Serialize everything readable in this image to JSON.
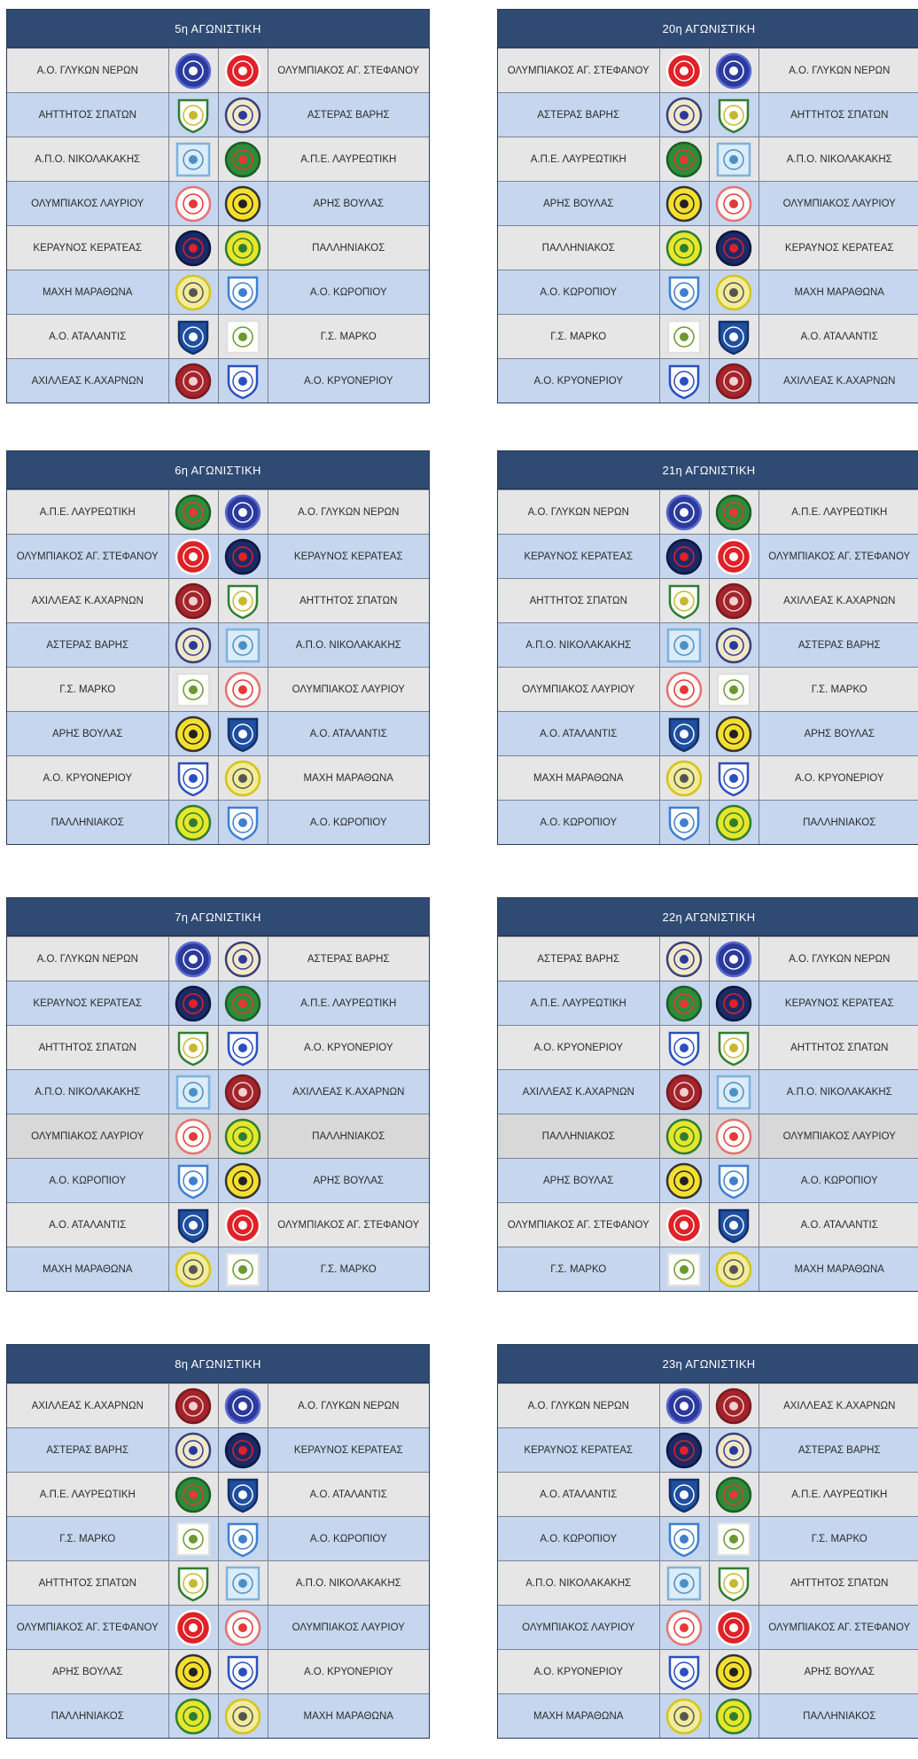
{
  "teams": {
    "glykon": {
      "name": "Α.Ο. ΓΛΥΚΩΝ ΝΕΡΩΝ",
      "icon": "glykon-nerwn-crest-icon",
      "shape": "circle",
      "bg": "#2b3a9c",
      "ring": "#5a6ad0",
      "mark": "#ffffff"
    },
    "olyst": {
      "name": "ΟΛΥΜΠΙΑΚΟΣ ΑΓ. ΣΤΕΦΑΝΟΥ",
      "icon": "olympiakos-ag-stefanou-crest-icon",
      "shape": "circle",
      "bg": "#e02127",
      "ring": "#ffffff",
      "mark": "#ffffff"
    },
    "aittitos": {
      "name": "ΑΗΤΤΗΤΟΣ ΣΠΑΤΩΝ",
      "icon": "aittitos-spatwn-crest-icon",
      "shape": "shield",
      "bg": "#ffffff",
      "ring": "#2e7d32",
      "mark": "#c8b830"
    },
    "asteras": {
      "name": "ΑΣΤΕΡΑΣ ΒΑΡΗΣ",
      "icon": "asteras-varis-crest-icon",
      "shape": "circle",
      "bg": "#f1e8c8",
      "ring": "#3a3f7a",
      "mark": "#2b3a9c"
    },
    "apo_nik": {
      "name": "Α.Π.Ο. ΝΙΚΟΛΑΚΑΚΗΣ",
      "icon": "apo-nikolakakis-crest-icon",
      "shape": "square",
      "bg": "#dcecf8",
      "ring": "#7fb2dd",
      "mark": "#4a90c8"
    },
    "ape_lavr": {
      "name": "Α.Π.Ε. ΛΑΥΡΕΩΤΙΚΗ",
      "icon": "ape-lavreotiki-crest-icon",
      "shape": "circle",
      "bg": "#2e8b3a",
      "ring": "#1c5e24",
      "mark": "#e53935"
    },
    "oly_lavr": {
      "name": "ΟΛΥΜΠΙΑΚΟΣ ΛΑΥΡΙΟΥ",
      "icon": "olympiakos-lavriou-crest-icon",
      "shape": "circle",
      "bg": "#ffffff",
      "ring": "#e57373",
      "mark": "#e53935"
    },
    "aris": {
      "name": "ΑΡΗΣ ΒΟΥΛΑΣ",
      "icon": "aris-voulas-crest-icon",
      "shape": "circle",
      "bg": "#f5df2e",
      "ring": "#333333",
      "mark": "#222222"
    },
    "keravnos": {
      "name": "ΚΕΡΑΥΝΟΣ ΚΕΡΑΤΕΑΣ",
      "icon": "keravnos-keratea-crest-icon",
      "shape": "circle",
      "bg": "#1a2a66",
      "ring": "#0f1840",
      "mark": "#e02127"
    },
    "pallini": {
      "name": "ΠΑΛΛΗΝΙΑΚΟΣ",
      "icon": "palliniakos-crest-icon",
      "shape": "circle",
      "bg": "#e6e62a",
      "ring": "#2e7d32",
      "mark": "#2e7d32"
    },
    "maxi": {
      "name": "ΜΑΧΗ ΜΑΡΑΘΩΝΑ",
      "icon": "maxi-marathona-crest-icon",
      "shape": "circle",
      "bg": "#f2ec9a",
      "ring": "#d4c41a",
      "mark": "#555555"
    },
    "korop": {
      "name": "Α.Ο. ΚΩΡΟΠΙΟΥ",
      "icon": "ao-koropiou-crest-icon",
      "shape": "shield",
      "bg": "#ffffff",
      "ring": "#3f7fcf",
      "mark": "#3f7fcf"
    },
    "atal": {
      "name": "Α.Ο. ΑΤΑΛΑΝΤΙΣ",
      "icon": "ao-atalantis-crest-icon",
      "shape": "shield",
      "bg": "#1f4fa0",
      "ring": "#12306a",
      "mark": "#ffffff"
    },
    "marko": {
      "name": "Γ.Σ. ΜΑΡΚΟ",
      "icon": "gs-marko-crest-icon",
      "shape": "square",
      "bg": "#ffffff",
      "ring": "#e0e0e0",
      "mark": "#6a9a2a"
    },
    "axil": {
      "name": "ΑΧΙΛΛΕΑΣ Κ.ΑΧΑΡΝΩΝ",
      "icon": "axilleas-k-axarnwn-crest-icon",
      "shape": "circle",
      "bg": "#a3242b",
      "ring": "#7a1a20",
      "mark": "#f0d0d0"
    },
    "kryon": {
      "name": "Α.Ο. ΚΡΥΟΝΕΡΙΟΥ",
      "icon": "ao-kryoneriou-crest-icon",
      "shape": "shield",
      "bg": "#ffffff",
      "ring": "#2a4fc0",
      "mark": "#2a4fc0"
    }
  },
  "rounds": [
    {
      "title": "5η ΑΓΩΝΙΣΤΙΚΗ",
      "matches": [
        {
          "home": "glykon",
          "away": "olyst"
        },
        {
          "home": "aittitos",
          "away": "asteras"
        },
        {
          "home": "apo_nik",
          "away": "ape_lavr"
        },
        {
          "home": "oly_lavr",
          "away": "aris"
        },
        {
          "home": "keravnos",
          "away": "pallini"
        },
        {
          "home": "maxi",
          "away": "korop"
        },
        {
          "home": "atal",
          "away": "marko"
        },
        {
          "home": "axil",
          "away": "kryon"
        }
      ]
    },
    {
      "title": "20η ΑΓΩΝΙΣΤΙΚΗ",
      "matches": [
        {
          "home": "olyst",
          "away": "glykon"
        },
        {
          "home": "asteras",
          "away": "aittitos"
        },
        {
          "home": "ape_lavr",
          "away": "apo_nik"
        },
        {
          "home": "aris",
          "away": "oly_lavr"
        },
        {
          "home": "pallini",
          "away": "keravnos"
        },
        {
          "home": "korop",
          "away": "maxi"
        },
        {
          "home": "marko",
          "away": "atal"
        },
        {
          "home": "kryon",
          "away": "axil"
        }
      ]
    },
    {
      "title": "6η ΑΓΩΝΙΣΤΙΚΗ",
      "matches": [
        {
          "home": "ape_lavr",
          "away": "glykon"
        },
        {
          "home": "olyst",
          "away": "keravnos"
        },
        {
          "home": "axil",
          "away": "aittitos"
        },
        {
          "home": "asteras",
          "away": "apo_nik"
        },
        {
          "home": "marko",
          "away": "oly_lavr"
        },
        {
          "home": "aris",
          "away": "atal"
        },
        {
          "home": "kryon",
          "away": "maxi"
        },
        {
          "home": "pallini",
          "away": "korop"
        }
      ]
    },
    {
      "title": "21η ΑΓΩΝΙΣΤΙΚΗ",
      "matches": [
        {
          "home": "glykon",
          "away": "ape_lavr"
        },
        {
          "home": "keravnos",
          "away": "olyst"
        },
        {
          "home": "aittitos",
          "away": "axil"
        },
        {
          "home": "apo_nik",
          "away": "asteras"
        },
        {
          "home": "oly_lavr",
          "away": "marko"
        },
        {
          "home": "atal",
          "away": "aris"
        },
        {
          "home": "maxi",
          "away": "kryon"
        },
        {
          "home": "korop",
          "away": "pallini"
        }
      ]
    },
    {
      "title": "7η ΑΓΩΝΙΣΤΙΚΗ",
      "matches": [
        {
          "home": "glykon",
          "away": "asteras"
        },
        {
          "home": "keravnos",
          "away": "ape_lavr"
        },
        {
          "home": "aittitos",
          "away": "kryon"
        },
        {
          "home": "apo_nik",
          "away": "axil"
        },
        {
          "home": "oly_lavr",
          "away": "pallini",
          "highlight": true
        },
        {
          "home": "korop",
          "away": "aris"
        },
        {
          "home": "atal",
          "away": "olyst"
        },
        {
          "home": "maxi",
          "away": "marko"
        }
      ]
    },
    {
      "title": "22η ΑΓΩΝΙΣΤΙΚΗ",
      "matches": [
        {
          "home": "asteras",
          "away": "glykon"
        },
        {
          "home": "ape_lavr",
          "away": "keravnos"
        },
        {
          "home": "kryon",
          "away": "aittitos"
        },
        {
          "home": "axil",
          "away": "apo_nik"
        },
        {
          "home": "pallini",
          "away": "oly_lavr",
          "highlight": true
        },
        {
          "home": "aris",
          "away": "korop"
        },
        {
          "home": "olyst",
          "away": "atal"
        },
        {
          "home": "marko",
          "away": "maxi"
        }
      ]
    },
    {
      "title": "8η ΑΓΩΝΙΣΤΙΚΗ",
      "matches": [
        {
          "home": "axil",
          "away": "glykon"
        },
        {
          "home": "asteras",
          "away": "keravnos"
        },
        {
          "home": "ape_lavr",
          "away": "atal"
        },
        {
          "home": "marko",
          "away": "korop"
        },
        {
          "home": "aittitos",
          "away": "apo_nik"
        },
        {
          "home": "olyst",
          "away": "oly_lavr"
        },
        {
          "home": "aris",
          "away": "kryon"
        },
        {
          "home": "pallini",
          "away": "maxi"
        }
      ]
    },
    {
      "title": "23η ΑΓΩΝΙΣΤΙΚΗ",
      "matches": [
        {
          "home": "glykon",
          "away": "axil"
        },
        {
          "home": "keravnos",
          "away": "asteras"
        },
        {
          "home": "atal",
          "away": "ape_lavr"
        },
        {
          "home": "korop",
          "away": "marko"
        },
        {
          "home": "apo_nik",
          "away": "aittitos"
        },
        {
          "home": "oly_lavr",
          "away": "olyst"
        },
        {
          "home": "kryon",
          "away": "aris"
        },
        {
          "home": "maxi",
          "away": "pallini"
        }
      ]
    }
  ]
}
